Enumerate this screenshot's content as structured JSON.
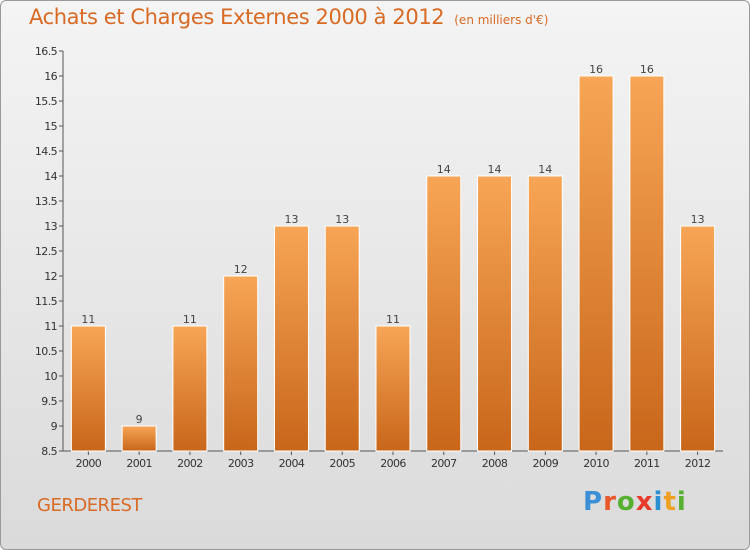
{
  "title": "Achats et Charges Externes 2000 à 2012",
  "unit_note": "(en milliers d'€)",
  "place": "GERDEREST",
  "logo": {
    "text": "Proxiti",
    "letters": [
      "P",
      "r",
      "o",
      "x",
      "i",
      "t",
      "i"
    ],
    "colors": [
      "#3a8fd6",
      "#e8582a",
      "#58b030",
      "#e83a2a",
      "#2a8fd0",
      "#f0a020",
      "#58b030"
    ]
  },
  "colors": {
    "bar_top": "#f7a556",
    "bar_bottom": "#c8661a",
    "bar_edge": "#ffffff",
    "accent": "#d86a24"
  },
  "chart_data": {
    "type": "bar",
    "title": "Achats et Charges Externes 2000 à 2012",
    "xlabel": "",
    "ylabel": "",
    "categories": [
      "2000",
      "2001",
      "2002",
      "2003",
      "2004",
      "2005",
      "2006",
      "2007",
      "2008",
      "2009",
      "2010",
      "2011",
      "2012"
    ],
    "values": [
      11,
      9,
      11,
      12,
      13,
      13,
      11,
      14,
      14,
      14,
      16,
      16,
      13
    ],
    "ylim": [
      8.5,
      16.5
    ],
    "yticks": [
      "8.5",
      "9",
      "9.5",
      "10",
      "10.5",
      "11",
      "11.5",
      "12",
      "12.5",
      "13",
      "13.5",
      "14",
      "14.5",
      "15",
      "15.5",
      "16",
      "16.5"
    ],
    "grid": false,
    "legend": "none"
  }
}
